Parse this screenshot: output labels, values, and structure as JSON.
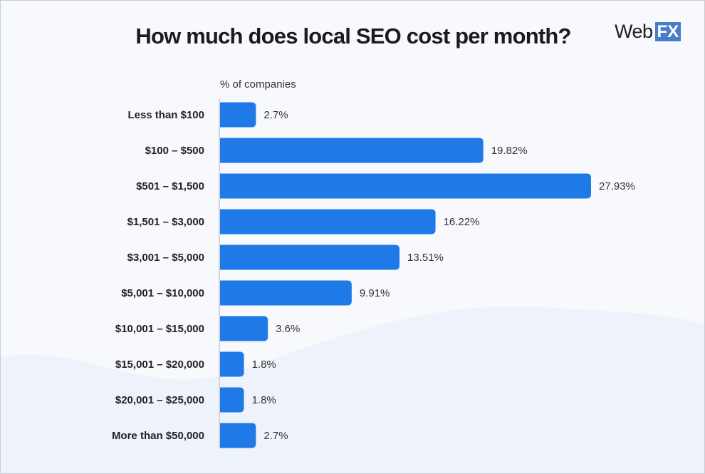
{
  "chart_data": {
    "type": "bar",
    "orientation": "horizontal",
    "title": "How much does local SEO cost per month?",
    "xlabel": "% of companies",
    "categories": [
      "Less than $100",
      "$100 – $500",
      "$501 – $1,500",
      "$1,501 – $3,000",
      "$3,001 – $5,000",
      "$5,001 – $10,000",
      "$10,001 – $15,000",
      "$15,001 – $20,000",
      "$20,001 – $25,000",
      "More than $50,000"
    ],
    "values": [
      2.7,
      19.82,
      27.93,
      16.22,
      13.51,
      9.91,
      3.6,
      1.8,
      1.8,
      2.7
    ],
    "data_labels": [
      "2.7%",
      "19.82%",
      "27.93%",
      "16.22%",
      "13.51%",
      "9.91%",
      "3.6%",
      "1.8%",
      "1.8%",
      "2.7%"
    ],
    "xlim": [
      0,
      27.93
    ],
    "grid": false,
    "bar_color": "#1f7ae8"
  },
  "logo": {
    "text_web": "Web",
    "text_fx": "FX",
    "accent": "#4a7dc9"
  }
}
